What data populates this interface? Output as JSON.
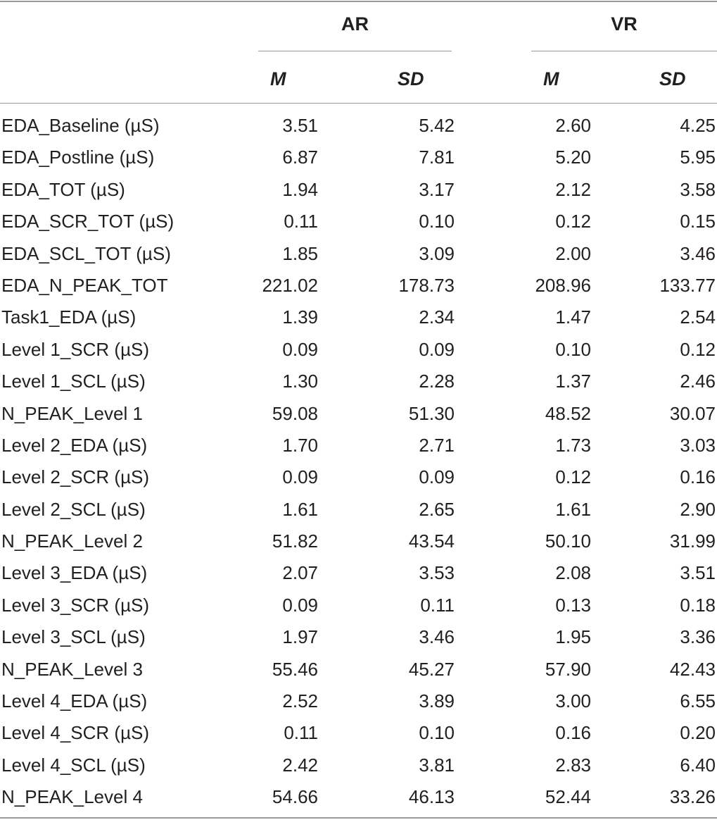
{
  "table": {
    "groups": [
      "AR",
      "VR"
    ],
    "subheaders": {
      "ar_m": "M",
      "ar_sd": "SD",
      "vr_m": "M",
      "vr_sd": "SD"
    },
    "rows": [
      {
        "label": "EDA_Baseline (µS)",
        "ar_m": "3.51",
        "ar_sd": "5.42",
        "vr_m": "2.60",
        "vr_sd": "4.25"
      },
      {
        "label": "EDA_Postline (µS)",
        "ar_m": "6.87",
        "ar_sd": "7.81",
        "vr_m": "5.20",
        "vr_sd": "5.95"
      },
      {
        "label": "EDA_TOT (µS)",
        "ar_m": "1.94",
        "ar_sd": "3.17",
        "vr_m": "2.12",
        "vr_sd": "3.58"
      },
      {
        "label": "EDA_SCR_TOT (µS)",
        "ar_m": "0.11",
        "ar_sd": "0.10",
        "vr_m": "0.12",
        "vr_sd": "0.15"
      },
      {
        "label": "EDA_SCL_TOT (µS)",
        "ar_m": "1.85",
        "ar_sd": "3.09",
        "vr_m": "2.00",
        "vr_sd": "3.46"
      },
      {
        "label": "EDA_N_PEAK_TOT",
        "ar_m": "221.02",
        "ar_sd": "178.73",
        "vr_m": "208.96",
        "vr_sd": "133.77"
      },
      {
        "label": "Task1_EDA (µS)",
        "ar_m": "1.39",
        "ar_sd": "2.34",
        "vr_m": "1.47",
        "vr_sd": "2.54"
      },
      {
        "label": "Level 1_SCR (µS)",
        "ar_m": "0.09",
        "ar_sd": "0.09",
        "vr_m": "0.10",
        "vr_sd": "0.12"
      },
      {
        "label": "Level 1_SCL (µS)",
        "ar_m": "1.30",
        "ar_sd": "2.28",
        "vr_m": "1.37",
        "vr_sd": "2.46"
      },
      {
        "label": "N_PEAK_Level 1",
        "ar_m": "59.08",
        "ar_sd": "51.30",
        "vr_m": "48.52",
        "vr_sd": "30.07"
      },
      {
        "label": "Level 2_EDA (µS)",
        "ar_m": "1.70",
        "ar_sd": "2.71",
        "vr_m": "1.73",
        "vr_sd": "3.03"
      },
      {
        "label": "Level 2_SCR (µS)",
        "ar_m": "0.09",
        "ar_sd": "0.09",
        "vr_m": "0.12",
        "vr_sd": "0.16"
      },
      {
        "label": "Level 2_SCL (µS)",
        "ar_m": "1.61",
        "ar_sd": "2.65",
        "vr_m": "1.61",
        "vr_sd": "2.90"
      },
      {
        "label": "N_PEAK_Level 2",
        "ar_m": "51.82",
        "ar_sd": "43.54",
        "vr_m": "50.10",
        "vr_sd": "31.99"
      },
      {
        "label": "Level 3_EDA (µS)",
        "ar_m": "2.07",
        "ar_sd": "3.53",
        "vr_m": "2.08",
        "vr_sd": "3.51"
      },
      {
        "label": "Level 3_SCR (µS)",
        "ar_m": "0.09",
        "ar_sd": "0.11",
        "vr_m": "0.13",
        "vr_sd": "0.18"
      },
      {
        "label": "Level 3_SCL (µS)",
        "ar_m": "1.97",
        "ar_sd": "3.46",
        "vr_m": "1.95",
        "vr_sd": "3.36"
      },
      {
        "label": "N_PEAK_Level 3",
        "ar_m": "55.46",
        "ar_sd": "45.27",
        "vr_m": "57.90",
        "vr_sd": "42.43"
      },
      {
        "label": "Level 4_EDA (µS)",
        "ar_m": "2.52",
        "ar_sd": "3.89",
        "vr_m": "3.00",
        "vr_sd": "6.55"
      },
      {
        "label": "Level 4_SCR (µS)",
        "ar_m": "0.11",
        "ar_sd": "0.10",
        "vr_m": "0.16",
        "vr_sd": "0.20"
      },
      {
        "label": "Level 4_SCL (µS)",
        "ar_m": "2.42",
        "ar_sd": "3.81",
        "vr_m": "2.83",
        "vr_sd": "6.40"
      },
      {
        "label": "N_PEAK_Level 4",
        "ar_m": "54.66",
        "ar_sd": "46.13",
        "vr_m": "52.44",
        "vr_sd": "33.26"
      }
    ]
  }
}
